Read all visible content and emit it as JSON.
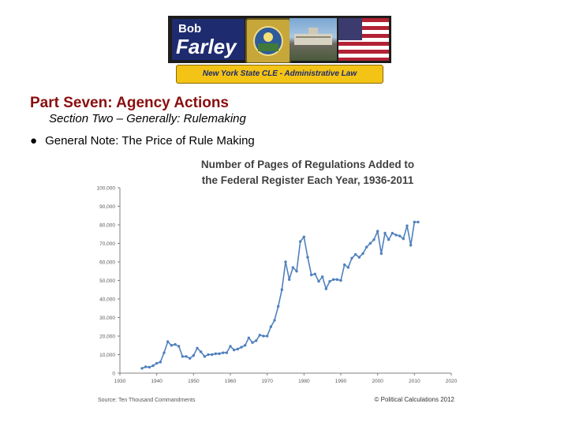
{
  "banner": {
    "name_first": "Bob",
    "name_last": "Farley",
    "subtitle": "New York State CLE - Administrative Law"
  },
  "slide": {
    "part_title": "Part Seven:  Agency Actions",
    "section_title": "Section Two – Generally: Rulemaking",
    "bullet": "General Note: The Price of Rule Making",
    "bullet_symbol": "●"
  },
  "chart_data": {
    "type": "line",
    "title_lines": [
      "Number of Pages of Regulations Added to",
      "the Federal Register Each Year, 1936-2011"
    ],
    "xlim": [
      1930,
      2020
    ],
    "ylim": [
      0,
      100000
    ],
    "x_ticks": [
      "1930",
      "1940",
      "1950",
      "1960",
      "1970",
      "1980",
      "1990",
      "2000",
      "2010",
      "2020"
    ],
    "y_ticks": [
      "0",
      "10,000",
      "20,000",
      "30,000",
      "40,000",
      "50,000",
      "60,000",
      "70,000",
      "80,000",
      "90,000",
      "100,000"
    ],
    "grid": false,
    "source": "Source: Ten Thousand Commandments",
    "credit": "© Political Calculations 2012",
    "line_color": "#4f81bd",
    "x": [
      1936,
      1937,
      1938,
      1939,
      1940,
      1941,
      1942,
      1943,
      1944,
      1945,
      1946,
      1947,
      1948,
      1949,
      1950,
      1951,
      1952,
      1953,
      1954,
      1955,
      1956,
      1957,
      1958,
      1959,
      1960,
      1961,
      1962,
      1963,
      1964,
      1965,
      1966,
      1967,
      1968,
      1969,
      1970,
      1971,
      1972,
      1973,
      1974,
      1975,
      1976,
      1977,
      1978,
      1979,
      1980,
      1981,
      1982,
      1983,
      1984,
      1985,
      1986,
      1987,
      1988,
      1989,
      1990,
      1991,
      1992,
      1993,
      1994,
      1995,
      1996,
      1997,
      1998,
      1999,
      2000,
      2001,
      2002,
      2003,
      2004,
      2005,
      2006,
      2007,
      2008,
      2009,
      2010,
      2011
    ],
    "y": [
      2600,
      3400,
      3200,
      4000,
      5300,
      6000,
      11000,
      17000,
      15000,
      15500,
      14500,
      9000,
      9000,
      8000,
      9500,
      13500,
      11500,
      9000,
      10000,
      10000,
      10500,
      10500,
      11000,
      11000,
      14500,
      12500,
      13000,
      14000,
      15000,
      19000,
      16500,
      17500,
      20500,
      20000,
      20000,
      25000,
      28500,
      36000,
      45000,
      60000,
      50500,
      57000,
      55000,
      71000,
      73500,
      62500,
      53000,
      53500,
      49500,
      52000,
      45500,
      49500,
      50500,
      50500,
      50000,
      58500,
      57000,
      62000,
      64000,
      62500,
      64500,
      68000,
      70000,
      72000,
      76500,
      64500,
      75500,
      72000,
      75500,
      74500,
      74000,
      72500,
      79500,
      69000,
      81500,
      81500
    ]
  }
}
